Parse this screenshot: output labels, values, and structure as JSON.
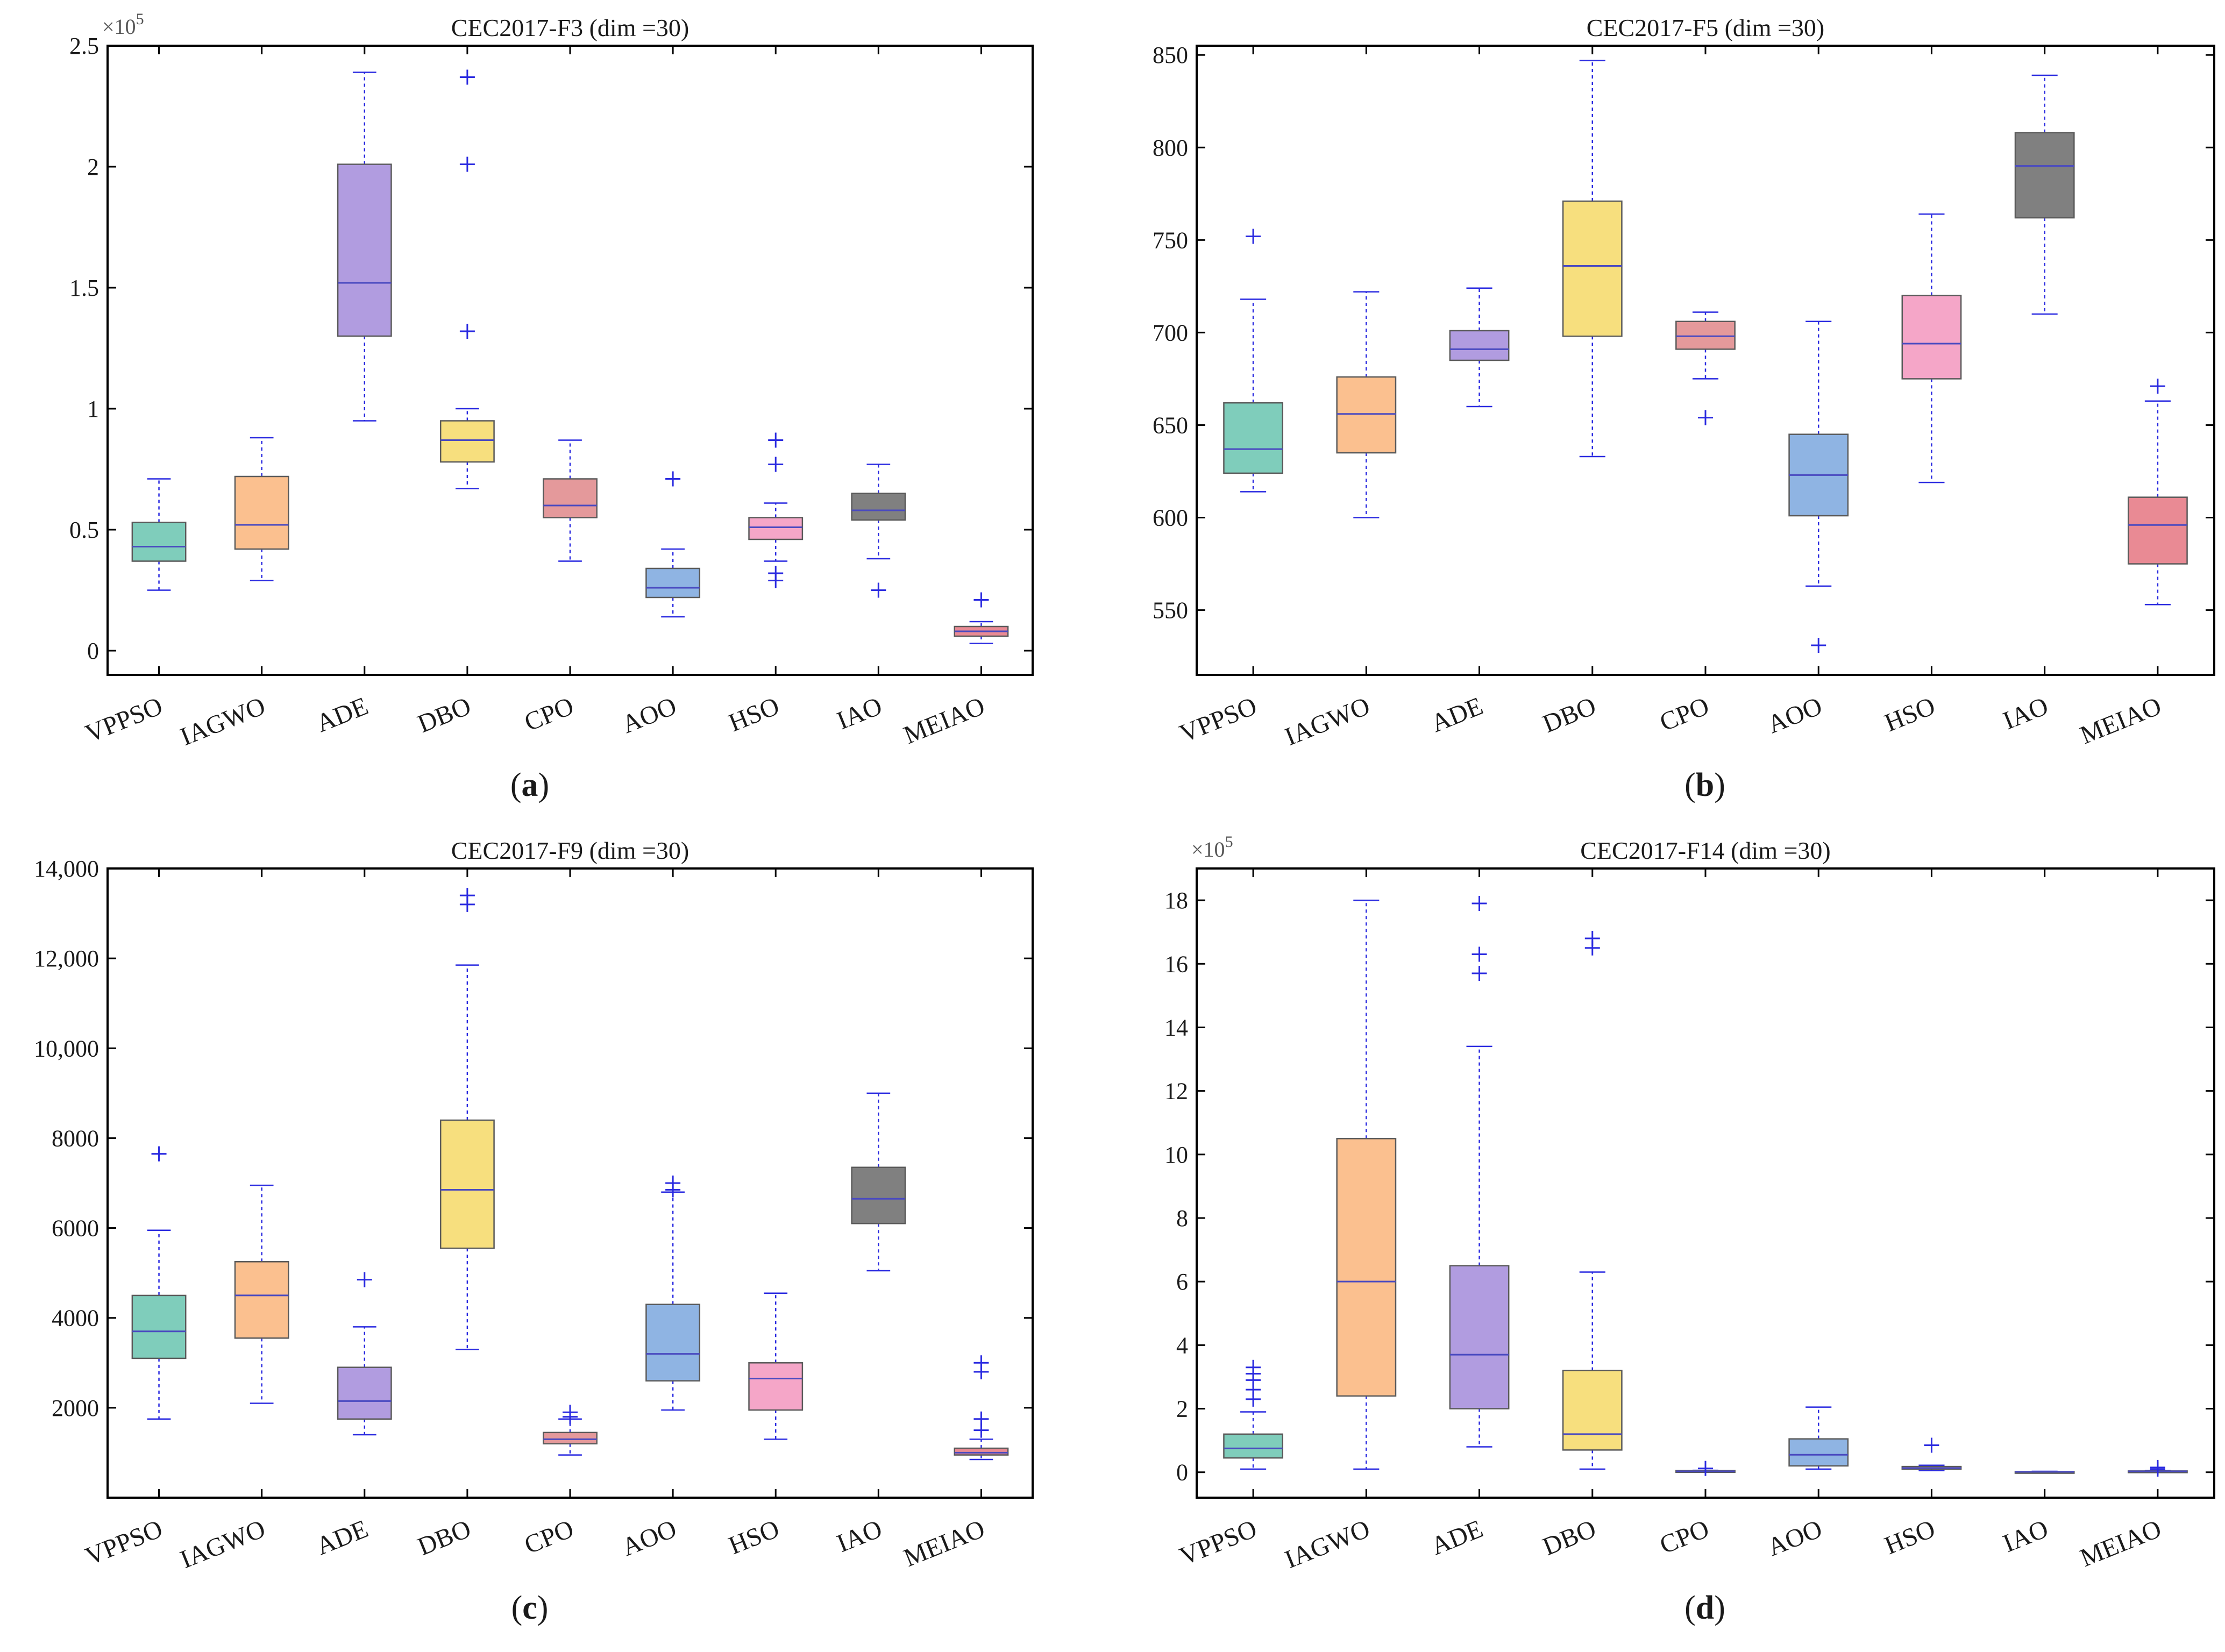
{
  "colors": {
    "VPPSO": "#7fcdbb",
    "IAGWO": "#fbc08f",
    "ADE": "#b19ce0",
    "DBO": "#f7df7e",
    "CPO": "#e4999b",
    "AOO": "#8fb4e3",
    "HSO": "#f5a6c8",
    "IAO": "#808080",
    "MEIAO": "#e98a94",
    "whisker": "#2a2ae0",
    "median": "#4a4ac0",
    "axis": "#000000"
  },
  "chart_data": [
    {
      "type": "box",
      "title": "CEC2017-F3 (dim =30)",
      "panel_label": "a",
      "multiplier": "×10",
      "multiplier_exp": "5",
      "ylim": [
        -0.1,
        2.5
      ],
      "yticks": [
        0,
        0.5,
        1,
        1.5,
        2,
        2.5
      ],
      "ytick_labels": [
        "0",
        "0.5",
        "1",
        "1.5",
        "2",
        "2.5"
      ],
      "categories": [
        "VPPSO",
        "IAGWO",
        "ADE",
        "DBO",
        "CPO",
        "AOO",
        "HSO",
        "IAO",
        "MEIAO"
      ],
      "boxes": [
        {
          "lw": 0.25,
          "q1": 0.37,
          "med": 0.43,
          "q3": 0.53,
          "uw": 0.71,
          "out": []
        },
        {
          "lw": 0.29,
          "q1": 0.42,
          "med": 0.52,
          "q3": 0.72,
          "uw": 0.88,
          "out": []
        },
        {
          "lw": 0.95,
          "q1": 1.3,
          "med": 1.52,
          "q3": 2.01,
          "uw": 2.39,
          "out": []
        },
        {
          "lw": 0.67,
          "q1": 0.78,
          "med": 0.87,
          "q3": 0.95,
          "uw": 1.0,
          "out": [
            1.32,
            2.01,
            2.37
          ]
        },
        {
          "lw": 0.37,
          "q1": 0.55,
          "med": 0.6,
          "q3": 0.71,
          "uw": 0.87,
          "out": []
        },
        {
          "lw": 0.14,
          "q1": 0.22,
          "med": 0.26,
          "q3": 0.34,
          "uw": 0.42,
          "out": [
            0.71
          ]
        },
        {
          "lw": 0.37,
          "q1": 0.46,
          "med": 0.51,
          "q3": 0.55,
          "uw": 0.61,
          "out": [
            0.29,
            0.32,
            0.77,
            0.87
          ]
        },
        {
          "lw": 0.38,
          "q1": 0.54,
          "med": 0.58,
          "q3": 0.65,
          "uw": 0.77,
          "out": [
            0.25
          ]
        },
        {
          "lw": 0.03,
          "q1": 0.06,
          "med": 0.08,
          "q3": 0.1,
          "uw": 0.12,
          "out": [
            0.21
          ]
        }
      ]
    },
    {
      "type": "box",
      "title": "CEC2017-F5 (dim =30)",
      "panel_label": "b",
      "multiplier": "",
      "multiplier_exp": "",
      "ylim": [
        515,
        855
      ],
      "yticks": [
        550,
        600,
        650,
        700,
        750,
        800,
        850
      ],
      "ytick_labels": [
        "550",
        "600",
        "650",
        "700",
        "750",
        "800",
        "850"
      ],
      "categories": [
        "VPPSO",
        "IAGWO",
        "ADE",
        "DBO",
        "CPO",
        "AOO",
        "HSO",
        "IAO",
        "MEIAO"
      ],
      "boxes": [
        {
          "lw": 614,
          "q1": 624,
          "med": 637,
          "q3": 662,
          "uw": 718,
          "out": [
            752
          ]
        },
        {
          "lw": 600,
          "q1": 635,
          "med": 656,
          "q3": 676,
          "uw": 722,
          "out": []
        },
        {
          "lw": 660,
          "q1": 685,
          "med": 691,
          "q3": 701,
          "uw": 724,
          "out": []
        },
        {
          "lw": 633,
          "q1": 698,
          "med": 736,
          "q3": 771,
          "uw": 847,
          "out": []
        },
        {
          "lw": 675,
          "q1": 691,
          "med": 698,
          "q3": 706,
          "uw": 711,
          "out": [
            654
          ]
        },
        {
          "lw": 563,
          "q1": 601,
          "med": 623,
          "q3": 645,
          "uw": 706,
          "out": [
            531
          ]
        },
        {
          "lw": 619,
          "q1": 675,
          "med": 694,
          "q3": 720,
          "uw": 764,
          "out": []
        },
        {
          "lw": 710,
          "q1": 762,
          "med": 790,
          "q3": 808,
          "uw": 839,
          "out": []
        },
        {
          "lw": 553,
          "q1": 575,
          "med": 596,
          "q3": 611,
          "uw": 663,
          "out": [
            671
          ]
        }
      ]
    },
    {
      "type": "box",
      "title": "CEC2017-F9 (dim =30)",
      "panel_label": "c",
      "multiplier": "",
      "multiplier_exp": "",
      "ylim": [
        0,
        14000
      ],
      "yticks": [
        2000,
        4000,
        6000,
        8000,
        10000,
        12000,
        14000
      ],
      "ytick_labels": [
        "2000",
        "4000",
        "6000",
        "8000",
        "10,000",
        "12,000",
        "14,000"
      ],
      "categories": [
        "VPPSO",
        "IAGWO",
        "ADE",
        "DBO",
        "CPO",
        "AOO",
        "HSO",
        "IAO",
        "MEIAO"
      ],
      "boxes": [
        {
          "lw": 1750,
          "q1": 3100,
          "med": 3700,
          "q3": 4500,
          "uw": 5950,
          "out": [
            7650
          ]
        },
        {
          "lw": 2100,
          "q1": 3550,
          "med": 4500,
          "q3": 5250,
          "uw": 6950,
          "out": []
        },
        {
          "lw": 1400,
          "q1": 1750,
          "med": 2150,
          "q3": 2900,
          "uw": 3800,
          "out": [
            4850
          ]
        },
        {
          "lw": 3300,
          "q1": 5550,
          "med": 6850,
          "q3": 8400,
          "uw": 11850,
          "out": [
            13200,
            13400
          ]
        },
        {
          "lw": 950,
          "q1": 1200,
          "med": 1300,
          "q3": 1450,
          "uw": 1750,
          "out": [
            1800,
            1900
          ]
        },
        {
          "lw": 1950,
          "q1": 2600,
          "med": 3200,
          "q3": 4300,
          "uw": 6800,
          "out": [
            6850,
            7000
          ]
        },
        {
          "lw": 1300,
          "q1": 1950,
          "med": 2650,
          "q3": 3000,
          "uw": 4550,
          "out": []
        },
        {
          "lw": 5050,
          "q1": 6100,
          "med": 6650,
          "q3": 7350,
          "uw": 9000,
          "out": []
        },
        {
          "lw": 850,
          "q1": 950,
          "med": 1000,
          "q3": 1100,
          "uw": 1300,
          "out": [
            1500,
            1750,
            2800,
            3000
          ]
        }
      ]
    },
    {
      "type": "box",
      "title": "CEC2017-F14 (dim =30)",
      "panel_label": "d",
      "multiplier": "×10",
      "multiplier_exp": "5",
      "ylim": [
        -0.8,
        19
      ],
      "yticks": [
        0,
        2,
        4,
        6,
        8,
        10,
        12,
        14,
        16,
        18
      ],
      "ytick_labels": [
        "0",
        "2",
        "4",
        "6",
        "8",
        "10",
        "12",
        "14",
        "16",
        "18"
      ],
      "categories": [
        "VPPSO",
        "IAGWO",
        "ADE",
        "DBO",
        "CPO",
        "AOO",
        "HSO",
        "IAO",
        "MEIAO"
      ],
      "boxes": [
        {
          "lw": 0.1,
          "q1": 0.45,
          "med": 0.75,
          "q3": 1.2,
          "uw": 1.9,
          "out": [
            2.3,
            2.6,
            2.9,
            3.1,
            3.3
          ]
        },
        {
          "lw": 0.1,
          "q1": 2.4,
          "med": 6.0,
          "q3": 10.5,
          "uw": 18.0,
          "out": []
        },
        {
          "lw": 0.8,
          "q1": 2.0,
          "med": 3.7,
          "q3": 6.5,
          "uw": 13.4,
          "out": [
            15.7,
            16.3,
            17.9
          ]
        },
        {
          "lw": 0.1,
          "q1": 0.7,
          "med": 1.2,
          "q3": 3.2,
          "uw": 6.3,
          "out": [
            16.5,
            16.8
          ]
        },
        {
          "lw": 0.0,
          "q1": 0.02,
          "med": 0.03,
          "q3": 0.05,
          "uw": 0.06,
          "out": [
            0.12
          ]
        },
        {
          "lw": 0.1,
          "q1": 0.2,
          "med": 0.55,
          "q3": 1.05,
          "uw": 2.05,
          "out": []
        },
        {
          "lw": 0.05,
          "q1": 0.1,
          "med": 0.13,
          "q3": 0.18,
          "uw": 0.22,
          "out": [
            0.85
          ]
        },
        {
          "lw": 0.0,
          "q1": 0.01,
          "med": 0.015,
          "q3": 0.02,
          "uw": 0.03,
          "out": []
        },
        {
          "lw": 0.01,
          "q1": 0.02,
          "med": 0.03,
          "q3": 0.04,
          "uw": 0.05,
          "out": [
            0.1,
            0.15
          ]
        }
      ]
    }
  ]
}
